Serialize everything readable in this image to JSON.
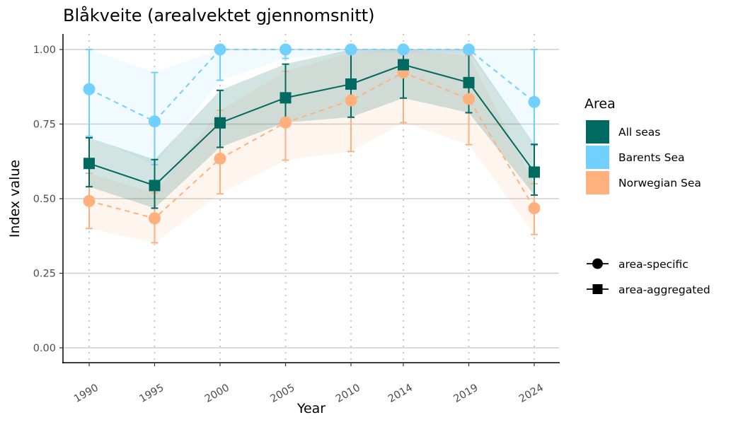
{
  "chart_data": {
    "type": "line",
    "title": "Blåkveite (arealvektet gjennomsnitt)",
    "xlabel": "Year",
    "ylabel": "Index value",
    "x": [
      1990,
      1995,
      2000,
      2005,
      2010,
      2014,
      2019,
      2024
    ],
    "x_tick_labels": [
      "1990",
      "1995",
      "2000",
      "2005",
      "2010",
      "2014",
      "2019",
      "2024"
    ],
    "ylim": [
      0,
      1
    ],
    "y_ticks": [
      0,
      0.25,
      0.5,
      0.75,
      1.0
    ],
    "y_tick_labels": [
      "0.00",
      "0.25",
      "0.50",
      "0.75",
      "1.00"
    ],
    "grid": true,
    "legend_placement": "right",
    "legend_title": "Area",
    "series": [
      {
        "name": "Barents Sea",
        "color": "#72D0FF",
        "type_label": "area-specific",
        "marker": "circle",
        "dash": true,
        "values": [
          0.867,
          0.759,
          1.0,
          1.0,
          1.0,
          1.0,
          1.0,
          0.824
        ],
        "lower": [
          0.709,
          0.614,
          0.897,
          0.97,
          0.99,
          0.99,
          0.99,
          0.68
        ],
        "upper": [
          1.0,
          0.923,
          1.0,
          1.0,
          1.0,
          1.0,
          1.0,
          1.0
        ]
      },
      {
        "name": "Norwegian Sea",
        "color": "#FFB07C",
        "type_label": "area-specific",
        "marker": "circle",
        "dash": true,
        "values": [
          0.492,
          0.434,
          0.634,
          0.755,
          0.829,
          0.923,
          0.834,
          0.468
        ],
        "lower": [
          0.4,
          0.352,
          0.516,
          0.629,
          0.658,
          0.755,
          0.681,
          0.38
        ],
        "upper": [
          0.585,
          0.52,
          0.796,
          0.927,
          0.99,
          1.0,
          0.98,
          0.55
        ]
      },
      {
        "name": "All seas",
        "color": "#006960",
        "type_label": "area-aggregated",
        "marker": "square",
        "dash": false,
        "values": [
          0.618,
          0.544,
          0.754,
          0.838,
          0.884,
          0.949,
          0.889,
          0.589
        ],
        "lower": [
          0.54,
          0.468,
          0.672,
          0.755,
          0.773,
          0.837,
          0.788,
          0.512
        ],
        "upper": [
          0.704,
          0.631,
          0.863,
          0.951,
          1.0,
          1.0,
          1.0,
          0.682
        ]
      }
    ],
    "legend_area": [
      "All seas",
      "Barents Sea",
      "Norwegian Sea"
    ],
    "legend_shape": [
      {
        "label": "area-specific",
        "marker": "circle"
      },
      {
        "label": "area-aggregated",
        "marker": "square"
      }
    ]
  }
}
